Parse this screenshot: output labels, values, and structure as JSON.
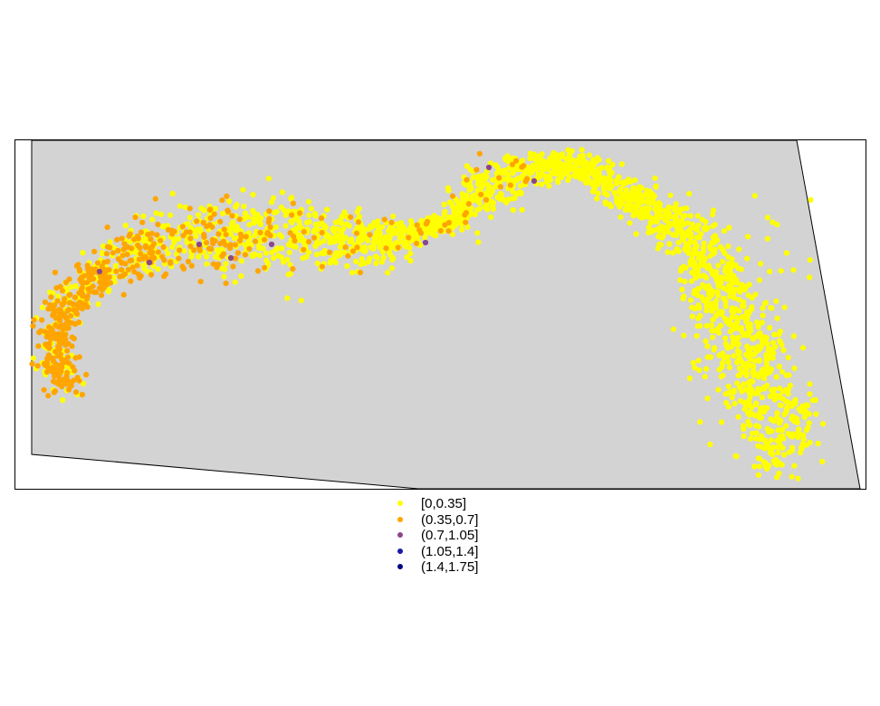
{
  "chart_data": {
    "type": "scatter",
    "title": "",
    "xlabel": "",
    "ylabel": "",
    "grid": false,
    "legend_position": "bottom",
    "background_colors": {
      "region_fill": "#d3d3d3",
      "page": "#ffffff"
    },
    "legend": [
      {
        "label": "[0,0.35]",
        "color": "#ffff00"
      },
      {
        "label": "(0.35,0.7]",
        "color": "#ffa500"
      },
      {
        "label": "(0.7,1.05]",
        "color": "#8b4789"
      },
      {
        "label": "(1.05,1.4]",
        "color": "#1a1aa8"
      },
      {
        "label": "(1.4,1.75]",
        "color": "#000080"
      }
    ],
    "series": [
      {
        "label": "[0,0.35]",
        "approx_count": 2200,
        "spread": "whole band, dominant in the central and eastern parts"
      },
      {
        "label": "(0.35,0.7]",
        "approx_count": 550,
        "spread": "concentrated in the western hook, a few in the central band"
      },
      {
        "label": "(0.7,1.05]",
        "approx_count": 8,
        "spread": "scattered, mostly western part"
      },
      {
        "label": "(1.05,1.4]",
        "approx_count": 0
      },
      {
        "label": "(1.4,1.75]",
        "approx_count": 0
      }
    ]
  }
}
